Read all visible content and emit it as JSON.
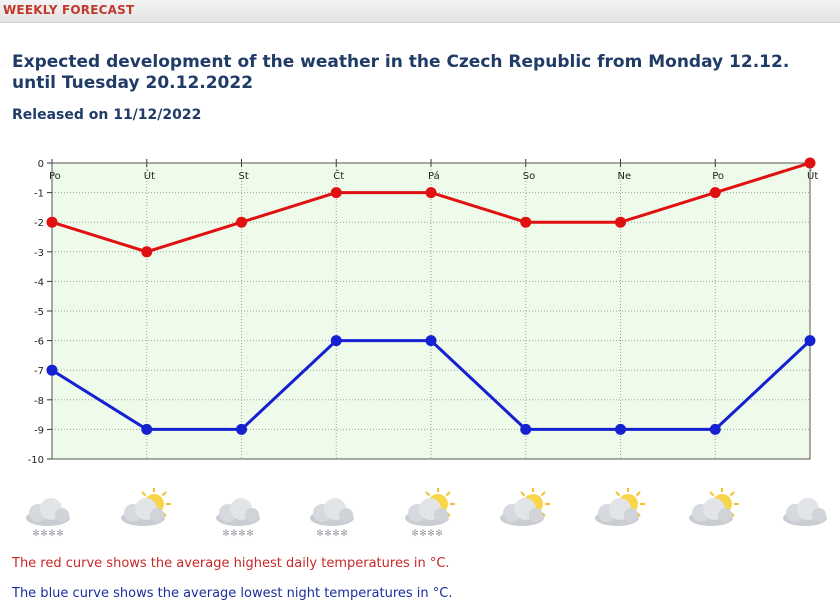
{
  "header": {
    "label": "WEEKLY FORECAST"
  },
  "title": "Expected development of the weather in the Czech Republic from Monday 12.12. until Tuesday 20.12.2022",
  "released": "Released on 11/12/2022",
  "legend": {
    "high": "The red curve shows the average highest daily temperatures in °C.",
    "low": "The blue curve shows the average lowest night temperatures in °C."
  },
  "colors": {
    "high": "#e01010",
    "low": "#1520d0",
    "plot_bg": "#eefbea",
    "grid": "#9aa39a"
  },
  "chart_data": {
    "type": "line",
    "title": "",
    "xlabel": "",
    "ylabel": "",
    "categories": [
      "Po",
      "Út",
      "St",
      "Čt",
      "Pá",
      "So",
      "Ne",
      "Po",
      "Út"
    ],
    "ylim": [
      -10,
      0
    ],
    "yticks": [
      0,
      -1,
      -2,
      -3,
      -4,
      -5,
      -6,
      -7,
      -8,
      -9,
      -10
    ],
    "grid": true,
    "series": [
      {
        "values": [
          -2,
          -3,
          -2,
          -1,
          -1,
          -2,
          -2,
          -1,
          0
        ],
        "color": "#e01010"
      },
      {
        "values": [
          -7,
          -9,
          -9,
          -6,
          -6,
          -9,
          -9,
          -9,
          -6
        ],
        "color": "#1520d0"
      }
    ]
  },
  "weather_icons": [
    {
      "icon": "cloud-snow-icon"
    },
    {
      "icon": "sun-cloud-icon"
    },
    {
      "icon": "cloud-snow-icon"
    },
    {
      "icon": "cloud-snow-icon"
    },
    {
      "icon": "sun-cloud-snow-icon"
    },
    {
      "icon": "sun-cloud-icon"
    },
    {
      "icon": "sun-cloud-icon"
    },
    {
      "icon": "sun-cloud-icon"
    },
    {
      "icon": "cloud-icon"
    }
  ]
}
